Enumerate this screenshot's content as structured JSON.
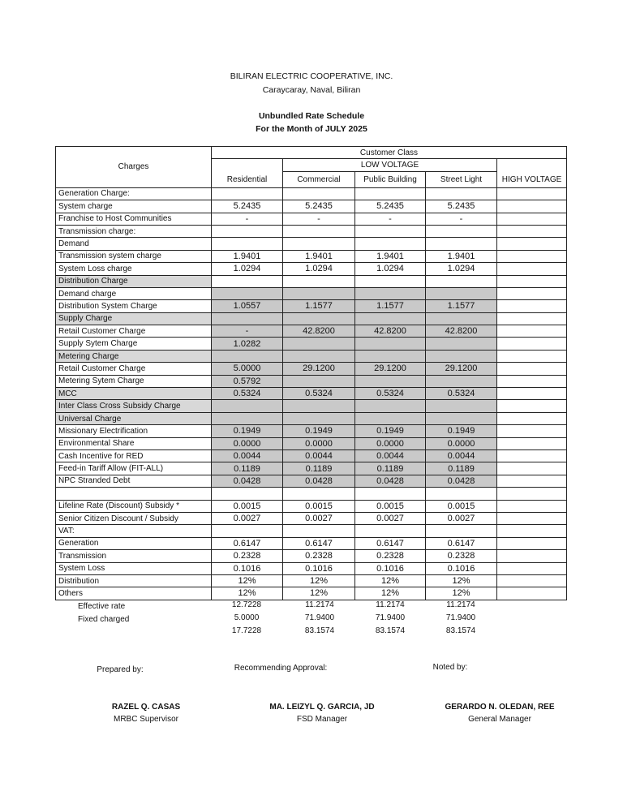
{
  "header": {
    "company": "BILIRAN ELECTRIC COOPERATIVE, INC.",
    "address": "Caraycaray, Naval, Biliran",
    "title": "Unbundled Rate Schedule",
    "subtitle": "For the Month of JULY 2025"
  },
  "table": {
    "columns": {
      "charges": "Charges",
      "customer_class": "Customer Class",
      "low_voltage": "LOW VOLTAGE",
      "residential": "Residential",
      "commercial": "Commercial",
      "public_building": "Public Building",
      "street_light": "Street Light",
      "high_voltage": "HIGH VOLTAGE"
    },
    "rows": [
      {
        "label": "Generation Charge:",
        "items": [
          {
            "label": "System charge",
            "values": [
              "5.2435",
              "5.2435",
              "5.2435",
              "5.2435"
            ]
          },
          {
            "label": "Franchise to Host Communities",
            "values": [
              "-",
              "-",
              "-",
              "-"
            ]
          }
        ]
      },
      {
        "label": "Transmission charge:",
        "items": [
          {
            "label": "Demand"
          },
          {
            "label": "Transmission system charge",
            "values": [
              "1.9401",
              "1.9401",
              "1.9401",
              "1.9401"
            ]
          }
        ]
      },
      {
        "label": "System Loss charge",
        "values": [
          "1.0294",
          "1.0294",
          "1.0294",
          "1.0294"
        ]
      },
      {
        "label": "Distribution Charge",
        "items": [
          {
            "label": "Demand charge"
          },
          {
            "label": "Distribution System Charge",
            "values": [
              "1.0557",
              "1.1577",
              "1.1577",
              "1.1577"
            ]
          }
        ]
      },
      {
        "label": "Supply Charge",
        "items": [
          {
            "label": "Retail Customer Charge",
            "values": [
              "-",
              "42.8200",
              "42.8200",
              "42.8200"
            ]
          },
          {
            "label": "Supply Sytem Charge",
            "values": [
              "1.0282"
            ]
          }
        ]
      },
      {
        "label": "Metering Charge",
        "items": [
          {
            "label": "Retail Customer Charge",
            "values": [
              "5.0000",
              "29.1200",
              "29.1200",
              "29.1200"
            ]
          },
          {
            "label": "Metering Sytem Charge",
            "values": [
              "0.5792"
            ]
          }
        ]
      },
      {
        "label": "MCC",
        "values": [
          "0.5324",
          "0.5324",
          "0.5324",
          "0.5324"
        ]
      },
      {
        "label": "Inter Class Cross Subsidy Charge"
      },
      {
        "label": "Universal Charge",
        "items": [
          {
            "label": "Missionary Electrification",
            "values": [
              "0.1949",
              "0.1949",
              "0.1949",
              "0.1949"
            ]
          },
          {
            "label": "Environmental Share",
            "values": [
              "0.0000",
              "0.0000",
              "0.0000",
              "0.0000"
            ]
          },
          {
            "label": "Cash Incentive for RED",
            "values": [
              "0.0044",
              "0.0044",
              "0.0044",
              "0.0044"
            ]
          },
          {
            "label": "Feed-in Tariff Allow (FIT-ALL)",
            "values": [
              "0.1189",
              "0.1189",
              "0.1189",
              "0.1189"
            ]
          },
          {
            "label": "NPC Stranded Debt",
            "values": [
              "0.0428",
              "0.0428",
              "0.0428",
              "0.0428"
            ]
          }
        ]
      },
      {
        "label": "Lifeline Rate (Discount) Subsidy *",
        "values": [
          "0.0015",
          "0.0015",
          "0.0015",
          "0.0015"
        ]
      },
      {
        "label": "Senior Citizen Discount / Subsidy",
        "values": [
          "0.0027",
          "0.0027",
          "0.0027",
          "0.0027"
        ]
      },
      {
        "label": "VAT:",
        "items": [
          {
            "label": "Generation",
            "values": [
              "0.6147",
              "0.6147",
              "0.6147",
              "0.6147"
            ]
          },
          {
            "label": "Transmission",
            "values": [
              "0.2328",
              "0.2328",
              "0.2328",
              "0.2328"
            ]
          },
          {
            "label": "System Loss",
            "values": [
              "0.1016",
              "0.1016",
              "0.1016",
              "0.1016"
            ]
          },
          {
            "label": "Distribution",
            "values": [
              "12%",
              "12%",
              "12%",
              "12%"
            ]
          },
          {
            "label": "Others",
            "values": [
              "12%",
              "12%",
              "12%",
              "12%"
            ]
          }
        ]
      }
    ]
  },
  "summary": {
    "rows": [
      {
        "label": "Effective rate",
        "values": [
          "12.7228",
          "11.2174",
          "11.2174",
          "11.2174"
        ]
      },
      {
        "label": "Fixed charged",
        "values": [
          "5.0000",
          "71.9400",
          "71.9400",
          "71.9400"
        ]
      }
    ],
    "totals": [
      "17.7228",
      "83.1574",
      "83.1574",
      "83.1574"
    ]
  },
  "signatures": [
    {
      "caption": "Prepared by:",
      "name": "RAZEL Q. CASAS",
      "position": "MRBC Supervisor"
    },
    {
      "caption": "Recommending Approval:",
      "name": "MA. LEIZYL Q. GARCIA, JD",
      "position": "FSD Manager"
    },
    {
      "caption": "Noted by:",
      "name": "GERARDO N. OLEDAN, REE",
      "position": "General Manager"
    }
  ]
}
